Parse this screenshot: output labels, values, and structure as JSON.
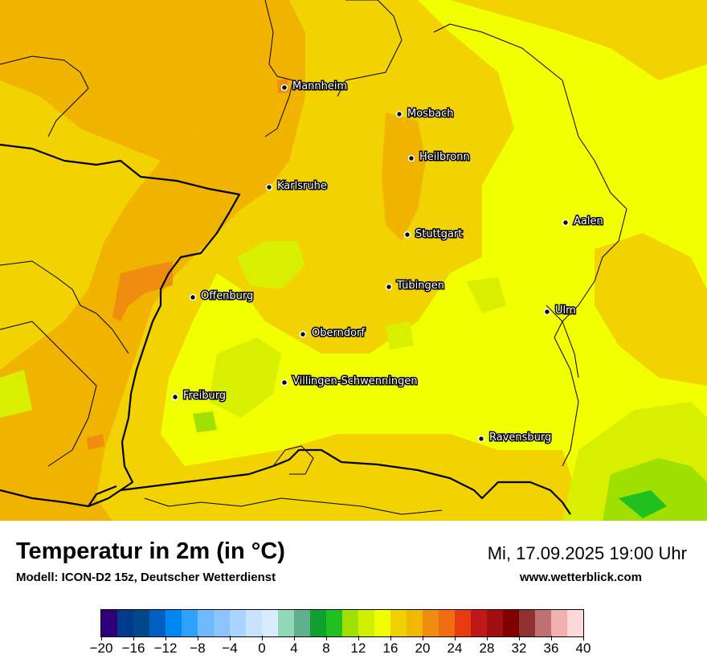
{
  "map": {
    "cities": [
      {
        "name": "Mannheim",
        "id": "mannheim"
      },
      {
        "name": "Mosbach",
        "id": "mosbach"
      },
      {
        "name": "Heilbronn",
        "id": "heilbronn"
      },
      {
        "name": "Karlsruhe",
        "id": "karlsruhe"
      },
      {
        "name": "Aalen",
        "id": "aalen"
      },
      {
        "name": "Stuttgart",
        "id": "stuttgart"
      },
      {
        "name": "Tübingen",
        "id": "tuebingen"
      },
      {
        "name": "Offenburg",
        "id": "offenburg"
      },
      {
        "name": "Ulm",
        "id": "ulm"
      },
      {
        "name": "Oberndorf",
        "id": "oberndorf"
      },
      {
        "name": "Villingen-Schwenningen",
        "id": "villingen"
      },
      {
        "name": "Freiburg",
        "id": "freiburg"
      },
      {
        "name": "Ravensburg",
        "id": "ravensburg"
      }
    ]
  },
  "footer": {
    "title": "Temperatur in 2m (in °C)",
    "model": "Modell: ICON-D2 15z, Deutscher Wetterdienst",
    "datetime": "Mi, 17.09.2025 19:00 Uhr",
    "website": "www.wetterblick.com"
  },
  "legend": {
    "ticks": [
      "−20",
      "−16",
      "−12",
      "−8",
      "−4",
      "0",
      "4",
      "8",
      "12",
      "16",
      "20",
      "24",
      "28",
      "32",
      "36",
      "40"
    ],
    "colors": [
      "#30007a",
      "#003a8a",
      "#00478c",
      "#0060c0",
      "#0088f0",
      "#30a0ff",
      "#70b8ff",
      "#8cc4ff",
      "#a8d4ff",
      "#c8e2ff",
      "#d8ebff",
      "#90d8b8",
      "#60b090",
      "#10a030",
      "#20c020",
      "#a0e000",
      "#d0f000",
      "#f0ff00",
      "#f0d000",
      "#f0b800",
      "#f08c10",
      "#f06c10",
      "#e83c10",
      "#c01818",
      "#a01010",
      "#800000",
      "#903030",
      "#c07070",
      "#f0b0b0",
      "#ffd8d8"
    ]
  }
}
